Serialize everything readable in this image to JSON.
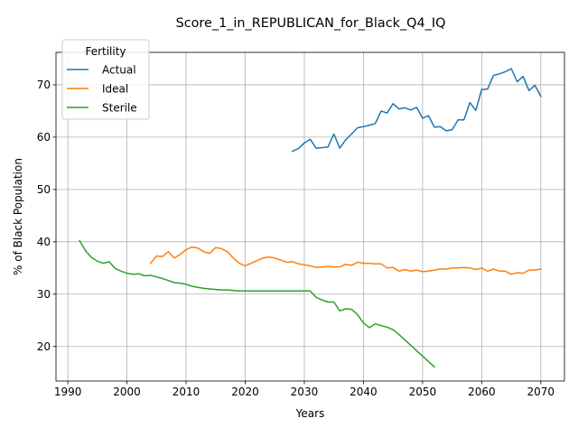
{
  "chart_data": {
    "type": "line",
    "title": "Score_1_in_REPUBLICAN_for_Black_Q4_IQ",
    "xlabel": "Years",
    "ylabel": "% of Black Population",
    "xlim": [
      1988,
      2074
    ],
    "ylim": [
      13.4,
      76.2
    ],
    "xticks": [
      1990,
      2000,
      2010,
      2020,
      2030,
      2040,
      2050,
      2060,
      2070
    ],
    "yticks": [
      20,
      30,
      40,
      50,
      60,
      70
    ],
    "grid": true,
    "legend": {
      "title": "Fertility",
      "position": "top-left"
    },
    "series": [
      {
        "name": "Actual",
        "color": "#1f77b4",
        "x": [
          2028,
          2029,
          2030,
          2031,
          2032,
          2033,
          2034,
          2035,
          2036,
          2037,
          2038,
          2039,
          2040,
          2041,
          2042,
          2043,
          2044,
          2045,
          2046,
          2047,
          2048,
          2049,
          2050,
          2051,
          2052,
          2053,
          2054,
          2055,
          2056,
          2057,
          2058,
          2059,
          2060,
          2061,
          2062,
          2063,
          2064,
          2065,
          2066,
          2067,
          2068,
          2069,
          2070
        ],
        "y": [
          57.3,
          57.8,
          58.9,
          59.6,
          57.9,
          58.0,
          58.1,
          60.6,
          57.9,
          59.5,
          60.6,
          61.8,
          62.0,
          62.3,
          62.6,
          65.0,
          64.6,
          66.4,
          65.4,
          65.6,
          65.2,
          65.7,
          63.6,
          64.1,
          61.9,
          62.0,
          61.2,
          61.4,
          63.3,
          63.3,
          66.6,
          65.1,
          69.1,
          69.2,
          71.8,
          72.1,
          72.5,
          73.1,
          70.6,
          71.6,
          68.9,
          69.9,
          67.8
        ]
      },
      {
        "name": "Ideal",
        "color": "#ff7f0e",
        "x": [
          2004,
          2005,
          2006,
          2007,
          2008,
          2009,
          2010,
          2011,
          2012,
          2013,
          2014,
          2015,
          2016,
          2017,
          2018,
          2019,
          2020,
          2021,
          2022,
          2023,
          2024,
          2025,
          2026,
          2027,
          2028,
          2029,
          2030,
          2031,
          2032,
          2033,
          2034,
          2035,
          2036,
          2037,
          2038,
          2039,
          2040,
          2041,
          2042,
          2043,
          2044,
          2045,
          2046,
          2047,
          2048,
          2049,
          2050,
          2051,
          2052,
          2053,
          2054,
          2055,
          2056,
          2057,
          2058,
          2059,
          2060,
          2061,
          2062,
          2063,
          2064,
          2065,
          2066,
          2067,
          2068,
          2069,
          2070
        ],
        "y": [
          35.9,
          37.3,
          37.2,
          38.1,
          36.9,
          37.6,
          38.5,
          39.0,
          38.8,
          38.1,
          37.8,
          38.9,
          38.7,
          38.1,
          36.9,
          35.9,
          35.4,
          35.9,
          36.4,
          36.9,
          37.1,
          36.9,
          36.5,
          36.1,
          36.2,
          35.8,
          35.6,
          35.4,
          35.1,
          35.2,
          35.3,
          35.2,
          35.2,
          35.7,
          35.5,
          36.1,
          35.9,
          35.9,
          35.8,
          35.8,
          35.0,
          35.1,
          34.4,
          34.7,
          34.4,
          34.6,
          34.3,
          34.4,
          34.6,
          34.8,
          34.8,
          35.0,
          35.0,
          35.1,
          35.0,
          34.7,
          35.0,
          34.4,
          34.8,
          34.4,
          34.4,
          33.8,
          34.1,
          34.0,
          34.6,
          34.6,
          34.8
        ]
      },
      {
        "name": "Sterile",
        "color": "#2ca02c",
        "x": [
          1992,
          1993,
          1994,
          1995,
          1996,
          1997,
          1998,
          1999,
          2000,
          2001,
          2002,
          2003,
          2004,
          2005,
          2006,
          2007,
          2008,
          2009,
          2010,
          2011,
          2012,
          2013,
          2014,
          2015,
          2016,
          2017,
          2018,
          2019,
          2020,
          2025,
          2031,
          2032,
          2033,
          2034,
          2035,
          2036,
          2037,
          2038,
          2039,
          2040,
          2041,
          2042,
          2043,
          2044,
          2045,
          2046,
          2052
        ],
        "y": [
          40.2,
          38.3,
          37.0,
          36.3,
          35.9,
          36.2,
          34.9,
          34.4,
          34.0,
          33.8,
          33.9,
          33.5,
          33.6,
          33.3,
          33.0,
          32.6,
          32.2,
          32.1,
          31.9,
          31.5,
          31.3,
          31.1,
          31.0,
          30.9,
          30.8,
          30.8,
          30.7,
          30.6,
          30.6,
          30.6,
          30.6,
          29.4,
          28.9,
          28.5,
          28.5,
          26.8,
          27.2,
          27.1,
          26.1,
          24.5,
          23.6,
          24.3,
          24.0,
          23.7,
          23.2,
          22.3,
          16.1
        ]
      }
    ]
  }
}
